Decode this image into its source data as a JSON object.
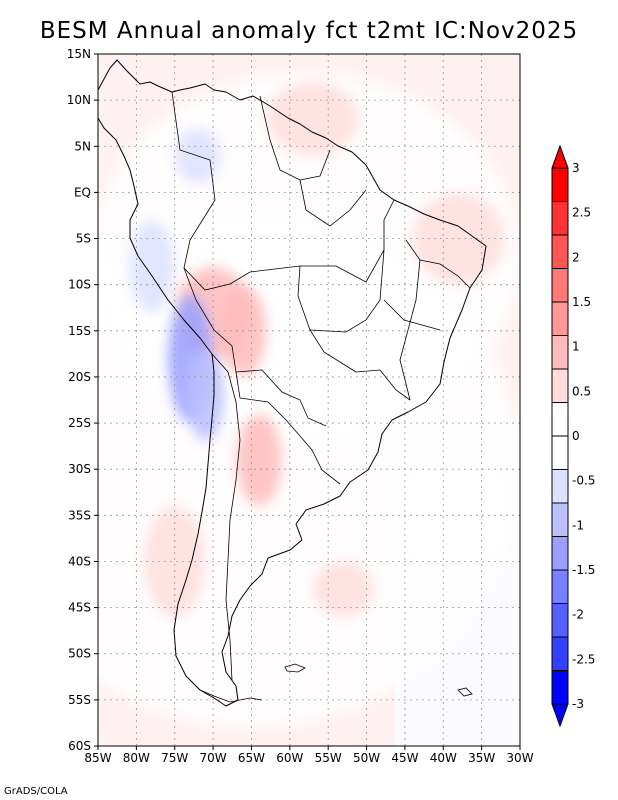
{
  "title": "BESM  Annual anomaly fct t2mt IC:Nov2025",
  "credit": "GrADS/COLA",
  "map": {
    "region": "South America",
    "lon_range": [
      -85,
      -30
    ],
    "lat_range": [
      -60,
      15
    ],
    "lon_ticks": [
      {
        "value": -85,
        "label": "85W"
      },
      {
        "value": -80,
        "label": "80W"
      },
      {
        "value": -75,
        "label": "75W"
      },
      {
        "value": -70,
        "label": "70W"
      },
      {
        "value": -65,
        "label": "65W"
      },
      {
        "value": -60,
        "label": "60W"
      },
      {
        "value": -55,
        "label": "55W"
      },
      {
        "value": -50,
        "label": "50W"
      },
      {
        "value": -45,
        "label": "45W"
      },
      {
        "value": -40,
        "label": "40W"
      },
      {
        "value": -35,
        "label": "35W"
      },
      {
        "value": -30,
        "label": "30W"
      }
    ],
    "lat_ticks": [
      {
        "value": 15,
        "label": "15N"
      },
      {
        "value": 10,
        "label": "10N"
      },
      {
        "value": 5,
        "label": "5N"
      },
      {
        "value": 0,
        "label": "EQ"
      },
      {
        "value": -5,
        "label": "5S"
      },
      {
        "value": -10,
        "label": "10S"
      },
      {
        "value": -15,
        "label": "15S"
      },
      {
        "value": -20,
        "label": "20S"
      },
      {
        "value": -25,
        "label": "25S"
      },
      {
        "value": -30,
        "label": "30S"
      },
      {
        "value": -35,
        "label": "35S"
      },
      {
        "value": -40,
        "label": "40S"
      },
      {
        "value": -45,
        "label": "45S"
      },
      {
        "value": -50,
        "label": "50S"
      },
      {
        "value": -55,
        "label": "55S"
      },
      {
        "value": -60,
        "label": "60S"
      }
    ]
  },
  "colorbar": {
    "labels": [
      "3",
      "2.5",
      "2",
      "1.5",
      "1",
      "0.5",
      "0",
      "-0.5",
      "-1",
      "-1.5",
      "-2",
      "-2.5",
      "-3"
    ],
    "colors": [
      "#ff0000",
      "#ff3333",
      "#ff5555",
      "#ff7777",
      "#ff9999",
      "#ffbbbb",
      "#ffdddd",
      "#ffffff",
      "#ffffff",
      "#dde0ff",
      "#bbc0ff",
      "#99a0ff",
      "#7780ff",
      "#5560ff",
      "#3340ff",
      "#0000ff"
    ]
  },
  "anomaly_blobs": [
    {
      "lon": -58,
      "lat": -7,
      "rx": 28,
      "ry": 20,
      "value": 0.2
    },
    {
      "lon": -65,
      "lat": -30,
      "rx": 35,
      "ry": 28,
      "value": 0.3
    },
    {
      "lon": -70,
      "lat": -13,
      "rx": 5,
      "ry": 5,
      "value": 1.0
    },
    {
      "lon": -66,
      "lat": -15,
      "rx": 3,
      "ry": 5,
      "value": 1.2
    },
    {
      "lon": -64,
      "lat": -29,
      "rx": 3,
      "ry": 5,
      "value": 0.9
    },
    {
      "lon": -57,
      "lat": 8,
      "rx": 6,
      "ry": 4,
      "value": 0.6
    },
    {
      "lon": -38,
      "lat": -5,
      "rx": 6,
      "ry": 5,
      "value": 0.5
    },
    {
      "lon": -73,
      "lat": -18,
      "rx": 3,
      "ry": 7,
      "value": -1.2
    },
    {
      "lon": -71,
      "lat": -22,
      "rx": 2.5,
      "ry": 5,
      "value": -1.0
    },
    {
      "lon": -78,
      "lat": -8,
      "rx": 3,
      "ry": 5,
      "value": -0.6
    },
    {
      "lon": -72,
      "lat": 4,
      "rx": 3,
      "ry": 3,
      "value": -0.5
    },
    {
      "lon": -75,
      "lat": -40,
      "rx": 4,
      "ry": 6,
      "value": 0.5
    },
    {
      "lon": -53,
      "lat": -43,
      "rx": 4,
      "ry": 3,
      "value": 0.7
    },
    {
      "lon": -38,
      "lat": -35,
      "rx": 8,
      "ry": 6,
      "value": -0.3
    }
  ]
}
